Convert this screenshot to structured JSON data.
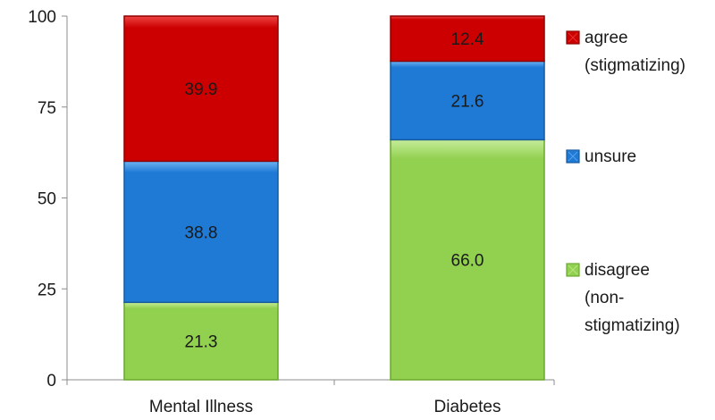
{
  "chart_data": {
    "type": "bar",
    "stacked": true,
    "categories": [
      "Mental Illness",
      "Diabetes"
    ],
    "series": [
      {
        "name": "disagree (non-stigmatizing)",
        "legend_lines": [
          "disagree",
          "(non-",
          "stigmatizing)"
        ],
        "values": [
          21.3,
          66.0
        ],
        "labels": [
          "21.3",
          "66.0"
        ],
        "color": "#92d050",
        "edge": "#6aa82e",
        "hi": "#c6ec9a"
      },
      {
        "name": "unsure",
        "legend_lines": [
          "unsure"
        ],
        "values": [
          38.8,
          21.6
        ],
        "labels": [
          "38.8",
          "21.6"
        ],
        "color": "#1f7ad6",
        "edge": "#155a9e",
        "hi": "#6fb4f2"
      },
      {
        "name": "agree (stigmatizing)",
        "legend_lines": [
          "agree",
          "(stigmatizing)"
        ],
        "values": [
          39.9,
          12.4
        ],
        "labels": [
          "39.9",
          "12.4"
        ],
        "color": "#cc0000",
        "edge": "#8e0000",
        "hi": "#f04545"
      }
    ],
    "ylim": [
      0,
      100
    ],
    "yticks": [
      0,
      25,
      50,
      75,
      100
    ],
    "ytick_labels": [
      "0",
      "25",
      "50",
      "75",
      "100"
    ],
    "legend_position": "right",
    "grid": false,
    "title": "",
    "xlabel": "",
    "ylabel": ""
  }
}
